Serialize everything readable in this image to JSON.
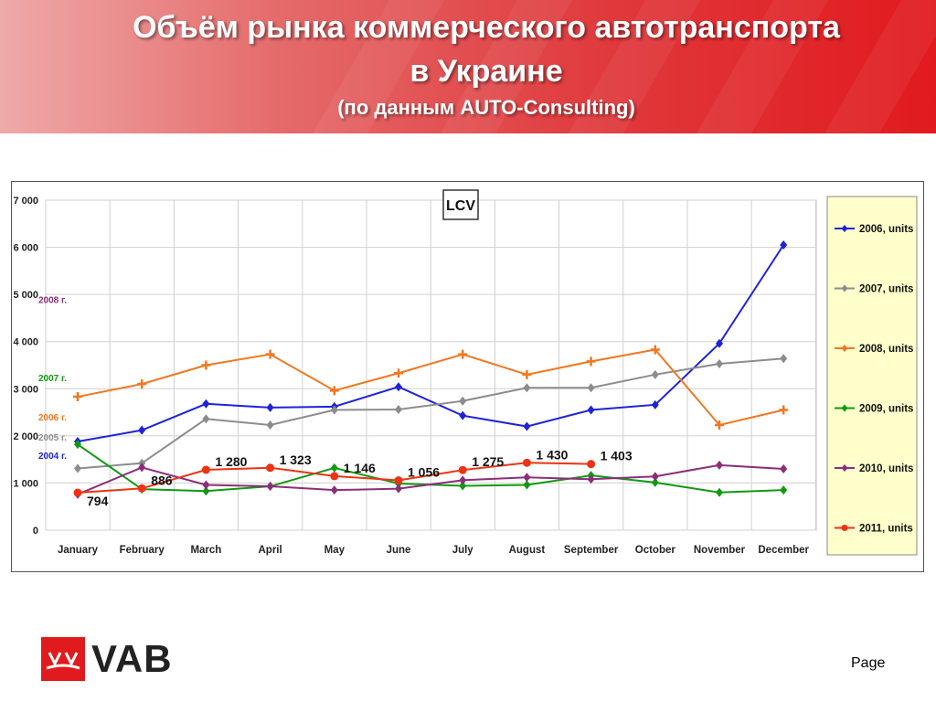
{
  "header": {
    "title_line1": "Объём рынка коммерческого автотранспорта",
    "title_line2": "в Украине",
    "subtitle": "(по данным AUTO-Consulting)"
  },
  "footer": {
    "logo_text": "VAB",
    "page_label": "Page"
  },
  "colors": {
    "banner": "#e11a1e",
    "legend_bg": "#ffffcc"
  },
  "chart_data": {
    "type": "line",
    "title": "LCV",
    "categories": [
      "January",
      "February",
      "March",
      "April",
      "May",
      "June",
      "July",
      "August",
      "September",
      "October",
      "November",
      "December"
    ],
    "ylim": [
      0,
      7000
    ],
    "yticks": [
      0,
      1000,
      2000,
      3000,
      4000,
      5000,
      6000,
      7000
    ],
    "ytick_labels": [
      "0",
      "1 000",
      "2 000",
      "3 000",
      "4 000",
      "5 000",
      "6 000",
      "7 000"
    ],
    "grid": true,
    "legend_position": "right",
    "series": [
      {
        "name": "2006, units",
        "color": "#1f22d8",
        "marker": "diamond",
        "values": [
          1880,
          2120,
          2680,
          2600,
          2620,
          3040,
          2430,
          2200,
          2550,
          2660,
          3960,
          6050
        ]
      },
      {
        "name": "2007, units",
        "color": "#8c8c8c",
        "marker": "diamond",
        "values": [
          1310,
          1420,
          2360,
          2230,
          2550,
          2560,
          2740,
          3020,
          3020,
          3300,
          3530,
          3640
        ]
      },
      {
        "name": "2008, units",
        "color": "#f07820",
        "marker": "cross",
        "values": [
          2830,
          3100,
          3500,
          3730,
          2960,
          3330,
          3730,
          3300,
          3580,
          3830,
          2230,
          2550
        ]
      },
      {
        "name": "2009, units",
        "color": "#119911",
        "marker": "diamond",
        "values": [
          1820,
          870,
          830,
          930,
          1320,
          990,
          940,
          960,
          1160,
          1010,
          800,
          850
        ]
      },
      {
        "name": "2010, units",
        "color": "#8b2e7a",
        "marker": "diamond",
        "values": [
          760,
          1330,
          960,
          930,
          850,
          880,
          1060,
          1120,
          1080,
          1140,
          1380,
          1300
        ]
      },
      {
        "name": "2011, units",
        "color": "#ee3314",
        "marker": "circle",
        "values": [
          794,
          886,
          1280,
          1323,
          1146,
          1056,
          1275,
          1430,
          1403,
          null,
          null,
          null
        ],
        "data_labels": [
          "794",
          "886",
          "1 280",
          "1 323",
          "1 146",
          "1 056",
          "1 275",
          "1 430",
          "1 403"
        ]
      }
    ],
    "side_labels": [
      {
        "text": "2008 г.",
        "color": "#8b2e7a",
        "value": 4900
      },
      {
        "text": "2007 г.",
        "color": "#119911",
        "value": 3240
      },
      {
        "text": "2006 г.",
        "color": "#f07820",
        "value": 2400
      },
      {
        "text": "2005 г.",
        "color": "#8c8c8c",
        "value": 1980
      },
      {
        "text": "2004 г.",
        "color": "#1f22d8",
        "value": 1590
      }
    ]
  }
}
